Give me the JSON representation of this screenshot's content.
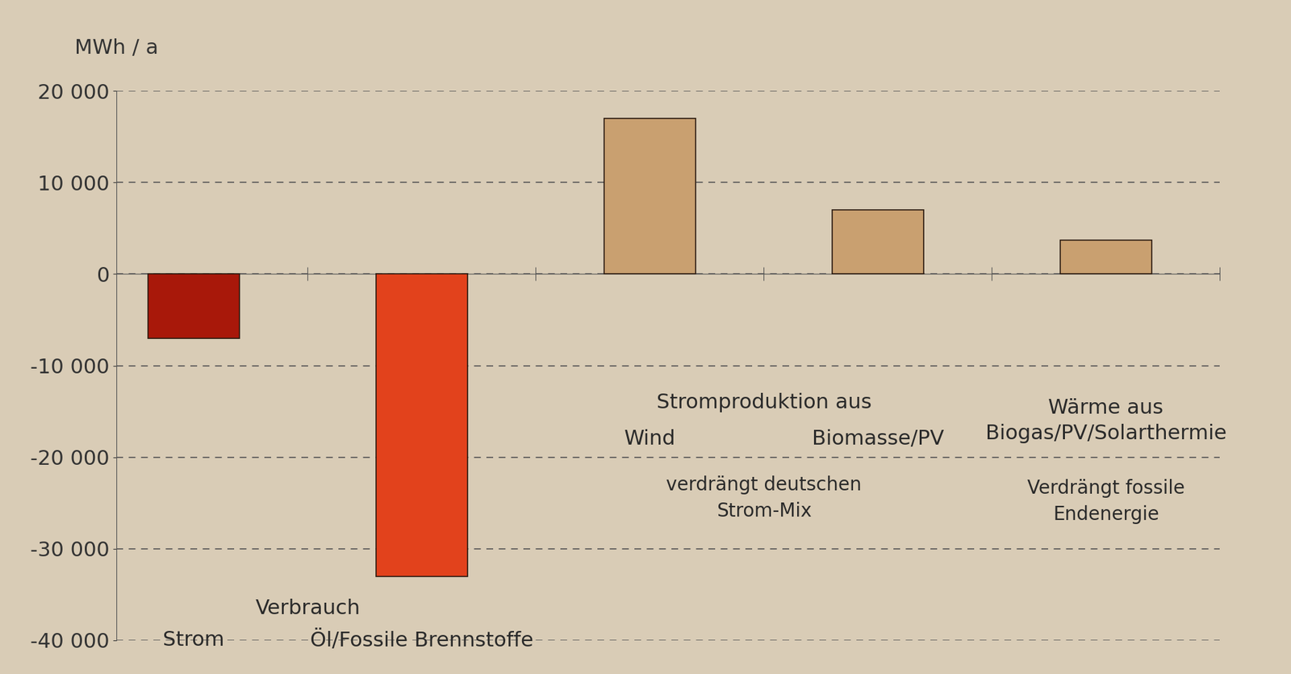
{
  "chart_data": {
    "type": "bar",
    "y_label": "MWh / a",
    "categories": [
      "Strom",
      "Öl/Fossile Brennstoffe",
      "Wind",
      "Biomasse/PV",
      null
    ],
    "values": [
      -7000,
      -33000,
      17000,
      7000,
      3700
    ],
    "colors": [
      "#a8180a",
      "#e2421c",
      "#c9a070",
      "#c9a070",
      "#c9a070"
    ],
    "ylim": [
      -40000,
      20000
    ],
    "yticks": [
      {
        "value": -40000,
        "label": "-40 000"
      },
      {
        "value": -30000,
        "label": "-30 000"
      },
      {
        "value": -20000,
        "label": "-20 000"
      },
      {
        "value": -10000,
        "label": "-10 000"
      },
      0,
      {
        "value": 10000,
        "label": "10 000"
      },
      {
        "value": 20000,
        "label": "20 000"
      }
    ],
    "grid": true,
    "annotations": [
      "Verbrauch",
      "Stromproduktion aus",
      "verdrängt deutschen\nStrom-Mix",
      "Wärme aus\nBiogas/PV/Solarthermie",
      "Verdrängt fossile\nEndenergie"
    ]
  }
}
